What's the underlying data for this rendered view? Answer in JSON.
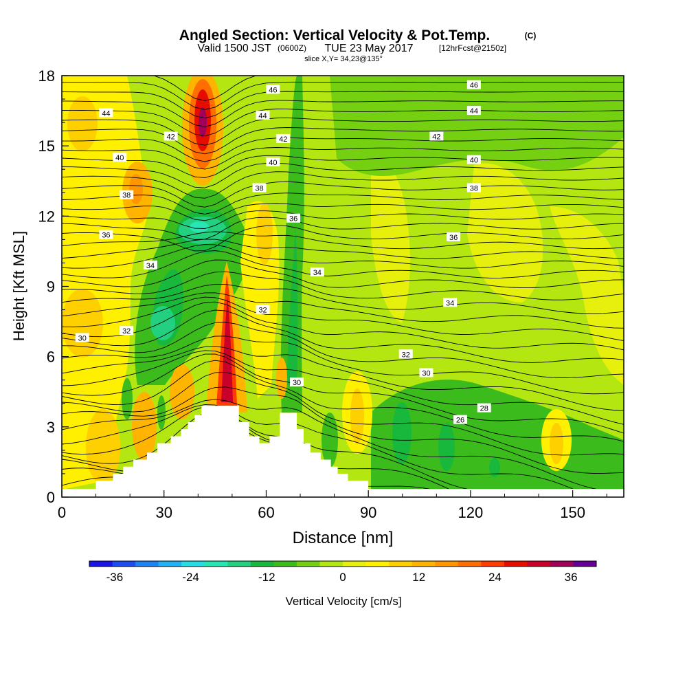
{
  "header": {
    "title_main": "Angled Section: Vertical Velocity & Pot.Temp.",
    "title_unit": "(C)",
    "valid_a": "Valid 1500 JST",
    "valid_b": "(0600Z)",
    "valid_c": "TUE 23 May 2017",
    "valid_d": "[12hrFcst@2150z]",
    "slice": "slice X,Y= 34,23@135°"
  },
  "chart_data": {
    "type": "heatmap",
    "title": "Angled Section: Vertical Velocity & Pot.Temp. (C)",
    "xlabel": "Distance [nm]",
    "ylabel": "Height [Kft MSL]",
    "xlim": [
      0,
      165
    ],
    "ylim": [
      0,
      18
    ],
    "x_ticks": [
      0,
      30,
      60,
      90,
      120,
      150
    ],
    "y_ticks": [
      0,
      3,
      6,
      9,
      12,
      15,
      18
    ],
    "colorbar": {
      "label": "Vertical Velocity [cm/s]",
      "range": [
        -40,
        40
      ],
      "tick_values": [
        -36,
        -24,
        -12,
        0,
        12,
        24,
        36
      ],
      "tick_labels": [
        "-36",
        "-24",
        "-12",
        "0",
        "12",
        "24",
        "36"
      ],
      "colors": [
        "#1a14e6",
        "#1b4df0",
        "#1e82f5",
        "#22b2f2",
        "#26dde6",
        "#28e6b4",
        "#22d080",
        "#18b83c",
        "#3cbc1c",
        "#76d012",
        "#b4e612",
        "#e6f00c",
        "#fff000",
        "#ffd000",
        "#ffb400",
        "#ff9600",
        "#ff6e00",
        "#ff3c00",
        "#e60c00",
        "#c8002a",
        "#a0005a",
        "#640096"
      ]
    },
    "contour_labels": [
      {
        "text": "44",
        "x": 13,
        "y": 16.4
      },
      {
        "text": "42",
        "x": 32,
        "y": 15.4
      },
      {
        "text": "40",
        "x": 17,
        "y": 14.5
      },
      {
        "text": "38",
        "x": 19,
        "y": 12.9
      },
      {
        "text": "36",
        "x": 13,
        "y": 11.2
      },
      {
        "text": "34",
        "x": 26,
        "y": 9.9
      },
      {
        "text": "32",
        "x": 19,
        "y": 7.1
      },
      {
        "text": "30",
        "x": 6,
        "y": 6.8
      },
      {
        "text": "46",
        "x": 62,
        "y": 17.4
      },
      {
        "text": "44",
        "x": 59,
        "y": 16.3
      },
      {
        "text": "42",
        "x": 65,
        "y": 15.3
      },
      {
        "text": "40",
        "x": 62,
        "y": 14.3
      },
      {
        "text": "38",
        "x": 58,
        "y": 13.2
      },
      {
        "text": "36",
        "x": 68,
        "y": 11.9
      },
      {
        "text": "34",
        "x": 75,
        "y": 9.6
      },
      {
        "text": "32",
        "x": 59,
        "y": 8.0
      },
      {
        "text": "30",
        "x": 69,
        "y": 4.9
      },
      {
        "text": "46",
        "x": 121,
        "y": 17.6
      },
      {
        "text": "44",
        "x": 121,
        "y": 16.5
      },
      {
        "text": "42",
        "x": 110,
        "y": 15.4
      },
      {
        "text": "40",
        "x": 121,
        "y": 14.4
      },
      {
        "text": "38",
        "x": 121,
        "y": 13.2
      },
      {
        "text": "36",
        "x": 115,
        "y": 11.1
      },
      {
        "text": "34",
        "x": 114,
        "y": 8.3
      },
      {
        "text": "32",
        "x": 101,
        "y": 6.1
      },
      {
        "text": "30",
        "x": 107,
        "y": 5.3
      },
      {
        "text": "28",
        "x": 124,
        "y": 3.8
      },
      {
        "text": "26",
        "x": 117,
        "y": 3.3
      }
    ]
  }
}
